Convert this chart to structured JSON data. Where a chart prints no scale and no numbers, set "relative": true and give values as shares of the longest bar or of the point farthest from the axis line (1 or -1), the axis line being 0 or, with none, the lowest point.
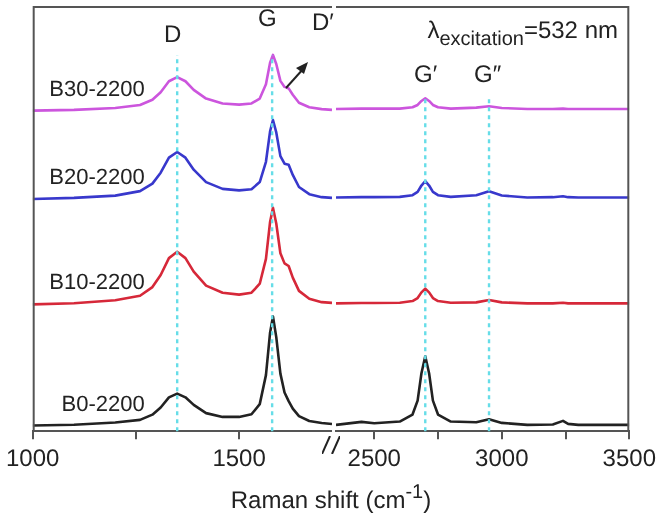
{
  "chart_data": [
    {
      "type": "line",
      "relative": true,
      "xlabel": "Raman shift (cm$^{-1}$)",
      "xlim": [
        1000,
        1725
      ],
      "xticks": [
        1000,
        {
          "value": 1250,
          "label": null
        },
        1500
      ],
      "x": [
        1000,
        1100,
        1200,
        1260,
        1290,
        1310,
        1330,
        1350,
        1370,
        1390,
        1420,
        1460,
        1500,
        1530,
        1550,
        1565,
        1575,
        1582,
        1590,
        1600,
        1610,
        1620,
        1630,
        1645,
        1670,
        1700,
        1725
      ],
      "series": [
        {
          "name": "B0-2200",
          "color": "#222222",
          "values": [
            0.015,
            0.017,
            0.023,
            0.03,
            0.044,
            0.063,
            0.09,
            0.1,
            0.09,
            0.07,
            0.048,
            0.038,
            0.038,
            0.045,
            0.072,
            0.149,
            0.262,
            0.305,
            0.25,
            0.153,
            0.103,
            0.08,
            0.06,
            0.04,
            0.027,
            0.022,
            0.019
          ]
        },
        {
          "name": "B10-2200",
          "color": "#d62839",
          "values": [
            0.337,
            0.34,
            0.348,
            0.36,
            0.383,
            0.415,
            0.46,
            0.477,
            0.46,
            0.424,
            0.387,
            0.368,
            0.363,
            0.368,
            0.392,
            0.458,
            0.556,
            0.594,
            0.552,
            0.473,
            0.446,
            0.439,
            0.408,
            0.373,
            0.352,
            0.343,
            0.341
          ]
        },
        {
          "name": "B20-2200",
          "color": "#3838cc",
          "values": [
            0.617,
            0.62,
            0.626,
            0.638,
            0.658,
            0.687,
            0.727,
            0.742,
            0.727,
            0.695,
            0.662,
            0.644,
            0.64,
            0.643,
            0.662,
            0.716,
            0.797,
            0.827,
            0.794,
            0.731,
            0.711,
            0.708,
            0.681,
            0.649,
            0.63,
            0.622,
            0.62
          ]
        },
        {
          "name": "B30-2200",
          "color": "#cc55dd",
          "values": [
            0.852,
            0.854,
            0.859,
            0.867,
            0.881,
            0.901,
            0.93,
            0.941,
            0.93,
            0.907,
            0.884,
            0.871,
            0.868,
            0.871,
            0.884,
            0.922,
            0.979,
            1,
            0.976,
            0.931,
            0.915,
            0.911,
            0.894,
            0.873,
            0.861,
            0.856,
            0.854
          ]
        }
      ],
      "ref_lines": [
        {
          "axis": "x",
          "value": 1350,
          "color": "#66dde8",
          "line_style": "dotted"
        },
        {
          "axis": "x",
          "value": 1580,
          "color": "#66dde8",
          "line_style": "dotted"
        }
      ],
      "annotations": [
        "D",
        "G",
        "D′"
      ]
    },
    {
      "type": "line",
      "relative": true,
      "xlim": [
        2350,
        3500
      ],
      "xticks": [
        2500,
        {
          "value": 2750,
          "label": null
        },
        3000,
        {
          "value": 3250,
          "label": null
        },
        3500
      ],
      "x": [
        2350,
        2450,
        2500,
        2600,
        2650,
        2670,
        2685,
        2700,
        2715,
        2730,
        2750,
        2800,
        2900,
        2950,
        3000,
        3100,
        3200,
        3240,
        3260,
        3300,
        3400,
        3500
      ],
      "series": [
        {
          "color": "#222222",
          "values": [
            0.019,
            0.028,
            0.024,
            0.029,
            0.05,
            0.092,
            0.174,
            0.225,
            0.174,
            0.092,
            0.05,
            0.029,
            0.027,
            0.036,
            0.025,
            0.019,
            0.02,
            0.031,
            0.022,
            0.019,
            0.019,
            0.019
          ]
        },
        {
          "color": "#d62839",
          "values": [
            0.384,
            0.385,
            0.385,
            0.386,
            0.391,
            0.4,
            0.417,
            0.428,
            0.417,
            0.4,
            0.391,
            0.386,
            0.387,
            0.394,
            0.387,
            0.384,
            0.384,
            0.386,
            0.384,
            0.384,
            0.384,
            0.384
          ]
        },
        {
          "color": "#3838cc",
          "values": [
            0.702,
            0.703,
            0.703,
            0.704,
            0.709,
            0.719,
            0.738,
            0.751,
            0.738,
            0.719,
            0.709,
            0.704,
            0.709,
            0.721,
            0.708,
            0.702,
            0.703,
            0.706,
            0.703,
            0.702,
            0.702,
            0.702
          ]
        },
        {
          "color": "#cc55dd",
          "values": [
            0.968,
            0.969,
            0.969,
            0.969,
            0.973,
            0.98,
            0.992,
            1,
            0.992,
            0.98,
            0.973,
            0.969,
            0.972,
            0.976,
            0.971,
            0.968,
            0.968,
            0.969,
            0.968,
            0.968,
            0.968,
            0.968
          ]
        }
      ],
      "ref_lines": [
        {
          "axis": "x",
          "value": 2700,
          "color": "#66dde8",
          "line_style": "dotted"
        },
        {
          "axis": "x",
          "value": 2950,
          "color": "#66dde8",
          "line_style": "dotted"
        }
      ],
      "annotations": [
        "G′",
        "G″",
        "λ$_{excitation}$=532 nm"
      ]
    }
  ]
}
